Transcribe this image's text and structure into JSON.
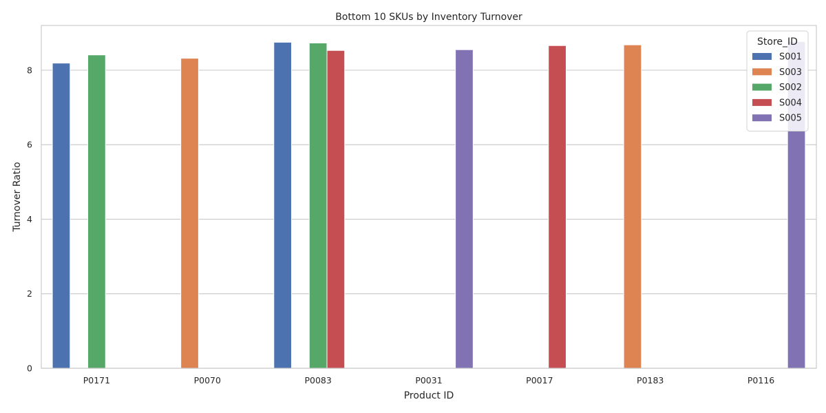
{
  "chart_data": {
    "type": "bar",
    "title": "Bottom 10 SKUs by Inventory Turnover",
    "xlabel": "Product ID",
    "ylabel": "Turnover Ratio",
    "ylim": [
      0,
      9.2
    ],
    "yticks": [
      0,
      2,
      4,
      6,
      8
    ],
    "grid": "horizontal",
    "legend_title": "Store_ID",
    "legend_placement": "top-right",
    "categories": [
      "P0171",
      "P0070",
      "P0083",
      "P0031",
      "P0017",
      "P0183",
      "P0116"
    ],
    "series": [
      {
        "name": "S001",
        "color": "#4c72b0",
        "values": [
          8.19,
          null,
          8.75,
          null,
          null,
          null,
          null
        ]
      },
      {
        "name": "S003",
        "color": "#dd8452",
        "values": [
          null,
          8.32,
          null,
          null,
          null,
          8.68,
          null
        ]
      },
      {
        "name": "S002",
        "color": "#55a868",
        "values": [
          8.41,
          null,
          8.73,
          null,
          null,
          null,
          null
        ]
      },
      {
        "name": "S004",
        "color": "#c44e52",
        "values": [
          null,
          null,
          8.53,
          null,
          8.66,
          null,
          null
        ]
      },
      {
        "name": "S005",
        "color": "#8172b3",
        "values": [
          null,
          null,
          null,
          8.55,
          null,
          null,
          8.77
        ]
      }
    ]
  }
}
